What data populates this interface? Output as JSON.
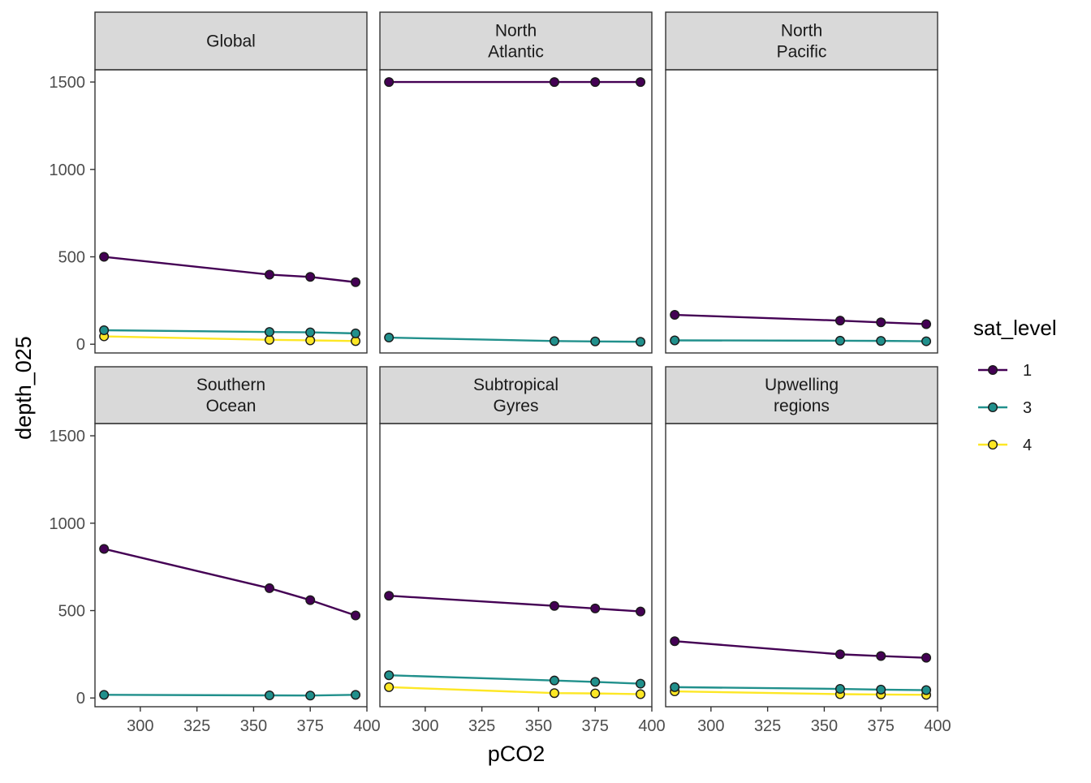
{
  "chart_data": {
    "type": "line",
    "layout": "facet-grid 2x3",
    "xlabel": "pCO2",
    "ylabel": "depth_025",
    "xlim": [
      280,
      400
    ],
    "ylim": [
      -50,
      1570
    ],
    "x_ticks": [
      300,
      325,
      350,
      375,
      400
    ],
    "y_ticks": [
      0,
      500,
      1000,
      1500
    ],
    "grid": false,
    "legend": {
      "title": "sat_level",
      "position": "right",
      "entries": [
        {
          "label": "1",
          "color": "#440154"
        },
        {
          "label": "3",
          "color": "#21908C"
        },
        {
          "label": "4",
          "color": "#FDE725"
        }
      ]
    },
    "x": [
      284,
      357,
      375,
      395
    ],
    "facets": [
      {
        "title": [
          "Global"
        ],
        "series": [
          {
            "name": "1",
            "values": [
              500,
              398,
              385,
              355
            ]
          },
          {
            "name": "3",
            "values": [
              80,
              70,
              68,
              62
            ]
          },
          {
            "name": "4",
            "values": [
              45,
              25,
              22,
              18
            ]
          }
        ]
      },
      {
        "title": [
          "North",
          "Atlantic"
        ],
        "series": [
          {
            "name": "1",
            "values": [
              1500,
              1500,
              1500,
              1500
            ]
          },
          {
            "name": "3",
            "values": [
              38,
              18,
              16,
              14
            ]
          }
        ]
      },
      {
        "title": [
          "North",
          "Pacific"
        ],
        "series": [
          {
            "name": "1",
            "values": [
              168,
              135,
              125,
              115
            ]
          },
          {
            "name": "3",
            "values": [
              22,
              20,
              19,
              17
            ]
          }
        ]
      },
      {
        "title": [
          "Southern",
          "Ocean"
        ],
        "series": [
          {
            "name": "1",
            "values": [
              853,
              628,
              560,
              472
            ]
          },
          {
            "name": "3",
            "values": [
              18,
              15,
              14,
              18
            ]
          }
        ]
      },
      {
        "title": [
          "Subtropical",
          "Gyres"
        ],
        "series": [
          {
            "name": "1",
            "values": [
              585,
              527,
              512,
              495
            ]
          },
          {
            "name": "3",
            "values": [
              130,
              100,
              92,
              82
            ]
          },
          {
            "name": "4",
            "values": [
              62,
              28,
              26,
              22
            ]
          }
        ]
      },
      {
        "title": [
          "Upwelling",
          "regions"
        ],
        "series": [
          {
            "name": "1",
            "values": [
              325,
              250,
              240,
              230
            ]
          },
          {
            "name": "3",
            "values": [
              62,
              52,
              48,
              45
            ]
          },
          {
            "name": "4",
            "values": [
              38,
              22,
              20,
              18
            ]
          }
        ]
      }
    ]
  }
}
